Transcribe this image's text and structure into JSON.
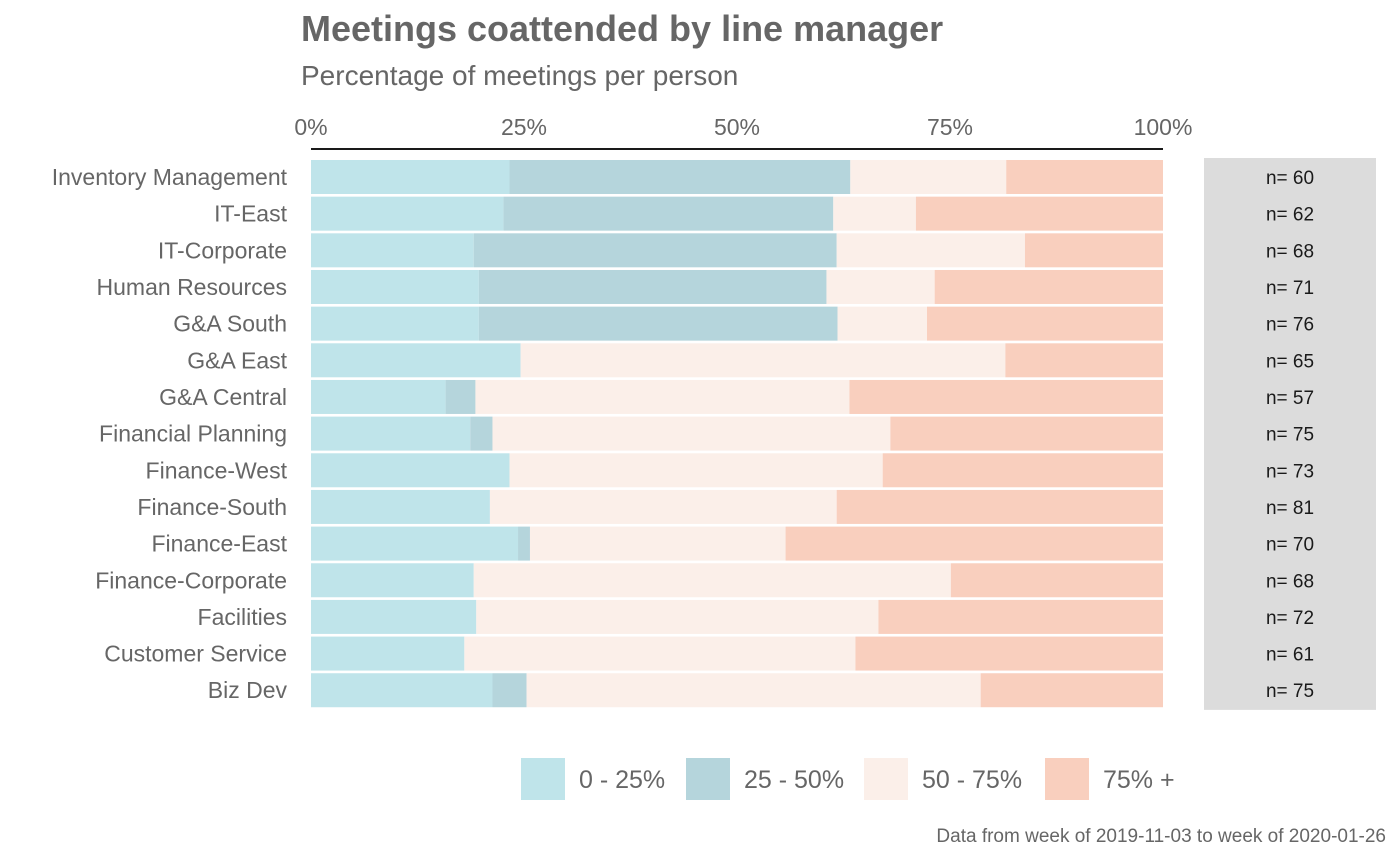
{
  "title": "Meetings coattended by line manager",
  "subtitle": "Percentage of meetings per person",
  "caption": "Data from week of 2019-11-03 to week of 2020-01-26",
  "colors": {
    "band_0_25": "#bfe4ea",
    "band_25_50": "#b5d5dc",
    "band_50_75": "#fbefe9",
    "band_75_plus": "#f9cfbe",
    "n_panel": "#dcdcdc",
    "text": "#666666"
  },
  "chart_data": {
    "type": "bar",
    "orientation": "horizontal",
    "stacked": "percent",
    "x_ticks": [
      "0%",
      "25%",
      "50%",
      "75%",
      "100%"
    ],
    "xlim": [
      0,
      100
    ],
    "legend_position": "bottom",
    "series": [
      {
        "name": "0 - 25%",
        "values": [
          23.3,
          22.6,
          19.1,
          19.7,
          19.7,
          24.6,
          15.8,
          18.7,
          23.3,
          21.0,
          24.3,
          19.1,
          19.4,
          18.0,
          21.3
        ]
      },
      {
        "name": "25 - 50%",
        "values": [
          40.0,
          38.7,
          42.6,
          40.8,
          42.1,
          0,
          3.5,
          2.6,
          0,
          0,
          1.4,
          0,
          0,
          0,
          4.0
        ]
      },
      {
        "name": "50 - 75%",
        "values": [
          18.3,
          9.7,
          22.1,
          12.7,
          10.5,
          56.9,
          43.9,
          46.7,
          43.8,
          40.7,
          30.0,
          56.0,
          47.2,
          45.9,
          53.3
        ]
      },
      {
        "name": "75% +",
        "values": [
          18.4,
          29.0,
          16.2,
          26.8,
          27.7,
          18.5,
          36.8,
          32.0,
          32.9,
          38.3,
          44.3,
          24.9,
          33.4,
          36.1,
          21.4
        ]
      }
    ],
    "categories": [
      "Inventory Management",
      "IT-East",
      "IT-Corporate",
      "Human Resources",
      "G&A South",
      "G&A East",
      "G&A Central",
      "Financial Planning",
      "Finance-West",
      "Finance-South",
      "Finance-East",
      "Finance-Corporate",
      "Facilities",
      "Customer Service",
      "Biz Dev"
    ],
    "n_labels": [
      "n= 60",
      "n= 62",
      "n= 68",
      "n= 71",
      "n= 76",
      "n= 65",
      "n= 57",
      "n= 75",
      "n= 73",
      "n= 81",
      "n= 70",
      "n= 68",
      "n= 72",
      "n= 61",
      "n= 75"
    ]
  }
}
